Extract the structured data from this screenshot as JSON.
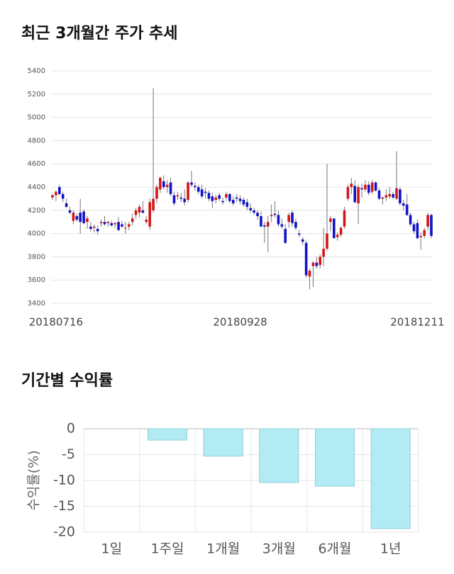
{
  "chart_data": [
    {
      "type": "candlestick",
      "title": "최근 3개월간 주가 추세",
      "categories": [
        null,
        "20180716",
        null,
        null,
        null,
        null,
        null,
        null,
        null,
        null,
        null,
        null,
        null,
        null,
        null,
        null,
        null,
        null,
        null,
        null,
        null,
        null,
        null,
        null,
        null,
        null,
        null,
        null,
        null,
        null,
        null,
        null,
        null,
        null,
        null,
        null,
        null,
        null,
        null,
        null,
        null,
        null,
        null,
        null,
        null,
        null,
        null,
        null,
        null,
        null,
        null,
        null,
        null,
        null,
        "20180928",
        null,
        null,
        null,
        null,
        null,
        null,
        null,
        null,
        null,
        null,
        null,
        null,
        null,
        null,
        null,
        null,
        null,
        null,
        null,
        null,
        null,
        null,
        null,
        null,
        null,
        null,
        null,
        null,
        null,
        null,
        null,
        null,
        null,
        null,
        null,
        null,
        null,
        null,
        null,
        null,
        null,
        null,
        null,
        null,
        null,
        null,
        null,
        null,
        null,
        null,
        "20181211",
        null,
        null,
        null,
        null
      ],
      "ohlc": [
        [
          4310,
          4340,
          4290,
          4330
        ],
        [
          4330,
          4370,
          4280,
          4360
        ],
        [
          4400,
          4420,
          4330,
          4340
        ],
        [
          4340,
          4360,
          4270,
          4300
        ],
        [
          4260,
          4300,
          4220,
          4230
        ],
        [
          4200,
          4230,
          4170,
          4180
        ],
        [
          4110,
          4200,
          4080,
          4180
        ],
        [
          4150,
          4170,
          4100,
          4120
        ],
        [
          4180,
          4300,
          4000,
          4100
        ],
        [
          4190,
          4210,
          4080,
          4090
        ],
        [
          4100,
          4150,
          4040,
          4130
        ],
        [
          4060,
          4100,
          4020,
          4040
        ],
        [
          4050,
          4080,
          4010,
          4060
        ],
        [
          4040,
          4070,
          3990,
          4020
        ],
        [
          4090,
          4120,
          4060,
          4100
        ],
        [
          4100,
          4150,
          4070,
          4080
        ],
        [
          4090,
          4110,
          4060,
          4100
        ],
        [
          4090,
          4110,
          4060,
          4070
        ],
        [
          4080,
          4100,
          4050,
          4090
        ],
        [
          4100,
          4140,
          4020,
          4030
        ],
        [
          4080,
          4110,
          4050,
          4060
        ],
        [
          4050,
          4100,
          4000,
          4050
        ],
        [
          4060,
          4100,
          4030,
          4080
        ],
        [
          4100,
          4170,
          4070,
          4130
        ],
        [
          4160,
          4220,
          4130,
          4200
        ],
        [
          4180,
          4250,
          4140,
          4230
        ],
        [
          4200,
          4280,
          4170,
          4180
        ],
        [
          4100,
          4150,
          4080,
          4120
        ],
        [
          4060,
          4300,
          4030,
          4270
        ],
        [
          4200,
          5250,
          4180,
          4300
        ],
        [
          4300,
          4420,
          4260,
          4400
        ],
        [
          4380,
          4490,
          4350,
          4480
        ],
        [
          4450,
          4500,
          4380,
          4400
        ],
        [
          4400,
          4460,
          4350,
          4420
        ],
        [
          4440,
          4480,
          4320,
          4340
        ],
        [
          4330,
          4360,
          4240,
          4260
        ],
        [
          4320,
          4360,
          4290,
          4330
        ],
        [
          4310,
          4350,
          4270,
          4300
        ],
        [
          4300,
          4380,
          4240,
          4270
        ],
        [
          4290,
          4450,
          4270,
          4440
        ],
        [
          4440,
          4540,
          4400,
          4420
        ],
        [
          4410,
          4440,
          4370,
          4400
        ],
        [
          4400,
          4420,
          4340,
          4360
        ],
        [
          4380,
          4420,
          4300,
          4320
        ],
        [
          4360,
          4390,
          4300,
          4350
        ],
        [
          4350,
          4370,
          4280,
          4300
        ],
        [
          4320,
          4350,
          4220,
          4280
        ],
        [
          4290,
          4330,
          4260,
          4310
        ],
        [
          4330,
          4350,
          4280,
          4300
        ],
        [
          4280,
          4310,
          4250,
          4270
        ],
        [
          4310,
          4360,
          4280,
          4340
        ],
        [
          4340,
          4350,
          4260,
          4280
        ],
        [
          4290,
          4320,
          4240,
          4260
        ],
        [
          4310,
          4340,
          4270,
          4300
        ],
        [
          4300,
          4330,
          4250,
          4280
        ],
        [
          4290,
          4310,
          4230,
          4250
        ],
        [
          4270,
          4300,
          4200,
          4230
        ],
        [
          4220,
          4260,
          4180,
          4200
        ],
        [
          4200,
          4220,
          4160,
          4180
        ],
        [
          4180,
          4200,
          4120,
          4150
        ],
        [
          4150,
          4190,
          4060,
          4060
        ],
        [
          4070,
          4100,
          3920,
          4060
        ],
        [
          4060,
          4150,
          3840,
          4100
        ],
        [
          4150,
          4250,
          4100,
          4160
        ],
        [
          4170,
          4280,
          4140,
          4160
        ],
        [
          4160,
          4200,
          4060,
          4080
        ],
        [
          4080,
          4130,
          4040,
          4060
        ],
        [
          4040,
          4080,
          3910,
          3920
        ],
        [
          4100,
          4180,
          4050,
          4160
        ],
        [
          4180,
          4200,
          4060,
          4090
        ],
        [
          4100,
          4130,
          4030,
          4050
        ],
        [
          4000,
          4030,
          3970,
          3990
        ],
        [
          3950,
          3970,
          3900,
          3930
        ],
        [
          3920,
          3940,
          3620,
          3640
        ],
        [
          3630,
          3700,
          3520,
          3680
        ],
        [
          3720,
          3760,
          3540,
          3750
        ],
        [
          3750,
          3800,
          3700,
          3720
        ],
        [
          3730,
          3820,
          3700,
          3800
        ],
        [
          3800,
          4050,
          3720,
          3870
        ],
        [
          3870,
          4600,
          3850,
          4000
        ],
        [
          4100,
          4150,
          4020,
          4130
        ],
        [
          4130,
          4130,
          3960,
          3960
        ],
        [
          3970,
          4010,
          3940,
          3990
        ],
        [
          3990,
          4060,
          3970,
          4050
        ],
        [
          4060,
          4230,
          4040,
          4200
        ],
        [
          4300,
          4420,
          4280,
          4400
        ],
        [
          4400,
          4480,
          4340,
          4430
        ],
        [
          4410,
          4460,
          4260,
          4270
        ],
        [
          4260,
          4420,
          4080,
          4400
        ],
        [
          4390,
          4430,
          4310,
          4380
        ],
        [
          4380,
          4460,
          4360,
          4420
        ],
        [
          4420,
          4450,
          4330,
          4350
        ],
        [
          4360,
          4460,
          4340,
          4440
        ],
        [
          4440,
          4450,
          4360,
          4370
        ],
        [
          4370,
          4390,
          4290,
          4300
        ],
        [
          4300,
          4320,
          4250,
          4310
        ],
        [
          4310,
          4380,
          4280,
          4330
        ],
        [
          4320,
          4400,
          4300,
          4340
        ],
        [
          4340,
          4360,
          4300,
          4310
        ],
        [
          4300,
          4710,
          4290,
          4390
        ],
        [
          4380,
          4400,
          4240,
          4260
        ],
        [
          4260,
          4290,
          4200,
          4240
        ],
        [
          4250,
          4340,
          4150,
          4160
        ],
        [
          4160,
          4180,
          4060,
          4080
        ],
        [
          4080,
          4100,
          4000,
          4020
        ],
        [
          4090,
          4120,
          3950,
          3960
        ],
        [
          3970,
          4010,
          3860,
          3980
        ],
        [
          3980,
          4050,
          3960,
          4030
        ],
        [
          4060,
          4180,
          4030,
          4160
        ],
        [
          4160,
          4170,
          3960,
          3980
        ]
      ],
      "up_color": "#d51616",
      "down_color": "#1212c8",
      "ylim": [
        3400,
        5400
      ],
      "yticks": [
        3400,
        3600,
        3800,
        4000,
        4200,
        4400,
        4600,
        4800,
        5000,
        5200,
        5400
      ],
      "grid": true
    },
    {
      "type": "bar",
      "title": "기간별 수익률",
      "ylabel": "수익률(%)",
      "categories": [
        "1일",
        "1주일",
        "1개월",
        "3개월",
        "6개월",
        "1년"
      ],
      "values": [
        0,
        -2.2,
        -5.3,
        -10.4,
        -11.1,
        -19.3
      ],
      "color": "#b3ebf4",
      "ylim": [
        -20,
        0
      ],
      "yticks": [
        0,
        -5,
        -10,
        -15,
        -20
      ],
      "grid": true
    }
  ]
}
